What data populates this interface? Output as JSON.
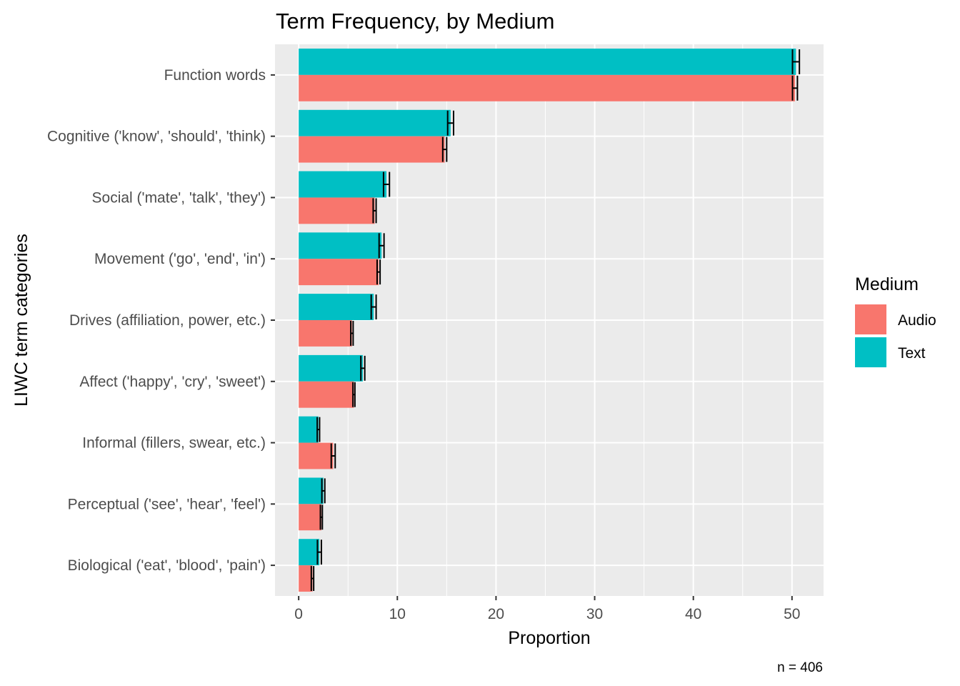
{
  "chart_data": {
    "type": "bar",
    "orientation": "horizontal",
    "title": "Term Frequency, by Medium",
    "xlabel": "Proportion",
    "ylabel": "LIWC term categories",
    "caption": "n = 406",
    "xlim": [
      -2.4,
      53.2
    ],
    "x_ticks": [
      0,
      10,
      20,
      30,
      40,
      50
    ],
    "categories": [
      "Function words",
      "Cognitive ('know', 'should', 'think)",
      "Social ('mate', 'talk', 'they')",
      "Movement ('go', 'end', 'in')",
      "Drives (affiliation, power, etc.)",
      "Affect ('happy', 'cry', 'sweet')",
      "Informal (fillers, swear, etc.)",
      "Perceptual ('see', 'hear', 'feel')",
      "Biological ('eat', 'blood', 'pain')"
    ],
    "legend": {
      "title": "Medium",
      "position": "right"
    },
    "grid": true,
    "error_bars": true,
    "series": [
      {
        "name": "Audio",
        "color": "#F8766D",
        "values": [
          50.3,
          14.8,
          7.7,
          8.1,
          5.4,
          5.6,
          3.5,
          2.3,
          1.4
        ],
        "error": [
          0.25,
          0.2,
          0.15,
          0.15,
          0.12,
          0.1,
          0.2,
          0.1,
          0.12
        ]
      },
      {
        "name": "Text",
        "color": "#00BFC4",
        "values": [
          50.4,
          15.4,
          8.9,
          8.4,
          7.6,
          6.5,
          2.0,
          2.5,
          2.1
        ],
        "error": [
          0.35,
          0.3,
          0.3,
          0.25,
          0.25,
          0.2,
          0.12,
          0.15,
          0.2
        ]
      }
    ]
  }
}
